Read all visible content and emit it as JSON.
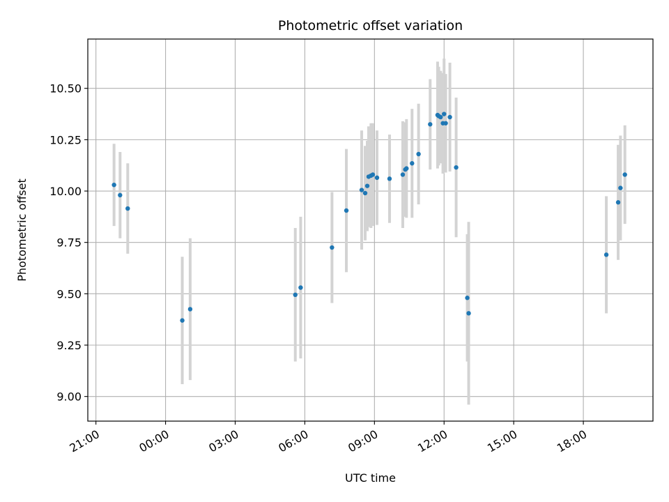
{
  "chart_data": {
    "type": "scatter",
    "title": "Photometric offset variation",
    "xlabel": "UTC time",
    "ylabel": "Photometric offset",
    "x_unit": "hours from 21:00 (day 1)",
    "xlim": [
      -0.35,
      24.0
    ],
    "ylim": [
      8.88,
      10.74
    ],
    "x_ticks": [
      {
        "value": 0,
        "label": "21:00"
      },
      {
        "value": 3,
        "label": "00:00"
      },
      {
        "value": 6,
        "label": "03:00"
      },
      {
        "value": 9,
        "label": "06:00"
      },
      {
        "value": 12,
        "label": "09:00"
      },
      {
        "value": 15,
        "label": "12:00"
      },
      {
        "value": 18,
        "label": "15:00"
      },
      {
        "value": 21,
        "label": "18:00"
      }
    ],
    "y_ticks": [
      {
        "value": 9.0,
        "label": "9.00"
      },
      {
        "value": 9.25,
        "label": "9.25"
      },
      {
        "value": 9.5,
        "label": "9.50"
      },
      {
        "value": 9.75,
        "label": "9.75"
      },
      {
        "value": 10.0,
        "label": "10.00"
      },
      {
        "value": 10.25,
        "label": "10.25"
      },
      {
        "value": 10.5,
        "label": "10.50"
      }
    ],
    "grid": true,
    "marker_color": "#1f77b4",
    "errorbar_color": "#d3d3d3",
    "points": [
      {
        "x": 0.78,
        "y": 10.03,
        "err": 0.2
      },
      {
        "x": 1.04,
        "y": 9.98,
        "err": 0.21
      },
      {
        "x": 1.37,
        "y": 9.915,
        "err": 0.22
      },
      {
        "x": 3.72,
        "y": 9.37,
        "err": 0.31
      },
      {
        "x": 4.06,
        "y": 9.425,
        "err": 0.345
      },
      {
        "x": 8.59,
        "y": 9.495,
        "err": 0.325
      },
      {
        "x": 8.82,
        "y": 9.53,
        "err": 0.345
      },
      {
        "x": 10.17,
        "y": 9.725,
        "err": 0.27
      },
      {
        "x": 10.79,
        "y": 9.905,
        "err": 0.3
      },
      {
        "x": 11.45,
        "y": 10.005,
        "err": 0.29
      },
      {
        "x": 11.6,
        "y": 9.99,
        "err": 0.23
      },
      {
        "x": 11.69,
        "y": 10.025,
        "err": 0.22
      },
      {
        "x": 11.75,
        "y": 10.07,
        "err": 0.245
      },
      {
        "x": 11.85,
        "y": 10.075,
        "err": 0.255
      },
      {
        "x": 11.93,
        "y": 10.08,
        "err": 0.25
      },
      {
        "x": 12.11,
        "y": 10.065,
        "err": 0.23
      },
      {
        "x": 12.65,
        "y": 10.06,
        "err": 0.215
      },
      {
        "x": 13.22,
        "y": 10.08,
        "err": 0.26
      },
      {
        "x": 13.33,
        "y": 10.105,
        "err": 0.23
      },
      {
        "x": 13.38,
        "y": 10.11,
        "err": 0.24
      },
      {
        "x": 13.62,
        "y": 10.135,
        "err": 0.265
      },
      {
        "x": 13.9,
        "y": 10.18,
        "err": 0.245
      },
      {
        "x": 14.4,
        "y": 10.325,
        "err": 0.22
      },
      {
        "x": 14.72,
        "y": 10.37,
        "err": 0.26
      },
      {
        "x": 14.77,
        "y": 10.365,
        "err": 0.24
      },
      {
        "x": 14.85,
        "y": 10.36,
        "err": 0.225
      },
      {
        "x": 14.95,
        "y": 10.33,
        "err": 0.245
      },
      {
        "x": 15.0,
        "y": 10.375,
        "err": 0.27
      },
      {
        "x": 15.07,
        "y": 10.33,
        "err": 0.24
      },
      {
        "x": 15.25,
        "y": 10.36,
        "err": 0.265
      },
      {
        "x": 15.52,
        "y": 10.115,
        "err": 0.34
      },
      {
        "x": 16.0,
        "y": 9.48,
        "err": 0.31
      },
      {
        "x": 16.06,
        "y": 9.405,
        "err": 0.445
      },
      {
        "x": 21.99,
        "y": 9.69,
        "err": 0.285
      },
      {
        "x": 22.5,
        "y": 9.945,
        "err": 0.28
      },
      {
        "x": 22.6,
        "y": 10.015,
        "err": 0.255
      },
      {
        "x": 22.79,
        "y": 10.08,
        "err": 0.24
      }
    ]
  }
}
